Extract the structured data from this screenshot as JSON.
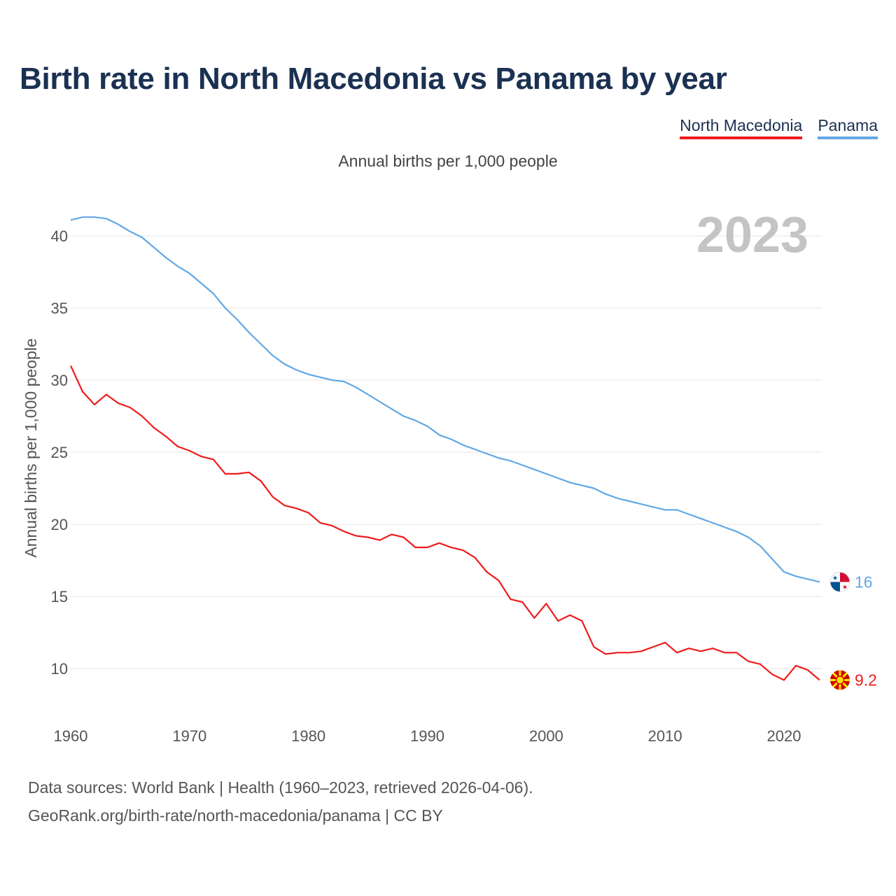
{
  "title": "Birth rate in North Macedonia vs Panama by year",
  "legend": {
    "north_macedonia": "North Macedonia",
    "panama": "Panama"
  },
  "subtitle": "Annual births per 1,000 people",
  "footer": {
    "line1": "Data sources: World Bank | Health (1960–2023, retrieved 2026-04-06).",
    "line2": "GeoRank.org/birth-rate/north-macedonia/panama | CC BY"
  },
  "colors": {
    "north_macedonia": "#ee1c1c",
    "panama": "#62a8e5",
    "year_label": "#c4c4c4",
    "grid": "#e6e6e6",
    "axis_text": "#555555"
  },
  "chart_data": {
    "type": "line",
    "title": "Birth rate in North Macedonia vs Panama by year",
    "xlabel": "",
    "ylabel": "Annual births per 1,000 people",
    "year_label": "2023",
    "xlim": [
      1960,
      2023
    ],
    "ylim": [
      7.5,
      43
    ],
    "x_ticks": [
      1960,
      1970,
      1980,
      1990,
      2000,
      2010,
      2020
    ],
    "y_ticks": [
      10,
      15,
      20,
      25,
      30,
      35,
      40
    ],
    "x": [
      1960,
      1961,
      1962,
      1963,
      1964,
      1965,
      1966,
      1967,
      1968,
      1969,
      1970,
      1971,
      1972,
      1973,
      1974,
      1975,
      1976,
      1977,
      1978,
      1979,
      1980,
      1981,
      1982,
      1983,
      1984,
      1985,
      1986,
      1987,
      1988,
      1989,
      1990,
      1991,
      1992,
      1993,
      1994,
      1995,
      1996,
      1997,
      1998,
      1999,
      2000,
      2001,
      2002,
      2003,
      2004,
      2005,
      2006,
      2007,
      2008,
      2009,
      2010,
      2011,
      2012,
      2013,
      2014,
      2015,
      2016,
      2017,
      2018,
      2019,
      2020,
      2021,
      2022,
      2023
    ],
    "series": [
      {
        "name": "North Macedonia",
        "end_label": "9.2",
        "values": [
          31.0,
          29.2,
          28.3,
          29.0,
          28.4,
          28.1,
          27.5,
          26.7,
          26.1,
          25.4,
          25.1,
          24.7,
          24.5,
          23.5,
          23.5,
          23.6,
          23.0,
          21.9,
          21.3,
          21.1,
          20.8,
          20.1,
          19.9,
          19.5,
          19.2,
          19.1,
          18.9,
          19.3,
          19.1,
          18.4,
          18.4,
          18.7,
          18.4,
          18.2,
          17.7,
          16.7,
          16.1,
          14.8,
          14.6,
          13.5,
          14.5,
          13.3,
          13.7,
          13.3,
          11.5,
          11.0,
          11.1,
          11.1,
          11.2,
          11.5,
          11.8,
          11.1,
          11.4,
          11.2,
          11.4,
          11.1,
          11.1,
          10.5,
          10.3,
          9.6,
          9.2,
          10.2,
          9.9,
          9.2
        ]
      },
      {
        "name": "Panama",
        "end_label": "16",
        "values": [
          41.1,
          41.3,
          41.3,
          41.2,
          40.8,
          40.3,
          39.9,
          39.2,
          38.5,
          37.9,
          37.4,
          36.7,
          36.0,
          35.0,
          34.2,
          33.3,
          32.5,
          31.7,
          31.1,
          30.7,
          30.4,
          30.2,
          30.0,
          29.9,
          29.5,
          29.0,
          28.5,
          28.0,
          27.5,
          27.2,
          26.8,
          26.2,
          25.9,
          25.5,
          25.2,
          24.9,
          24.6,
          24.4,
          24.1,
          23.8,
          23.5,
          23.2,
          22.9,
          22.7,
          22.5,
          22.1,
          21.8,
          21.6,
          21.4,
          21.2,
          21.0,
          21.0,
          20.7,
          20.4,
          20.1,
          19.8,
          19.5,
          19.1,
          18.5,
          17.6,
          16.7,
          16.4,
          16.2,
          16.0
        ]
      }
    ]
  }
}
